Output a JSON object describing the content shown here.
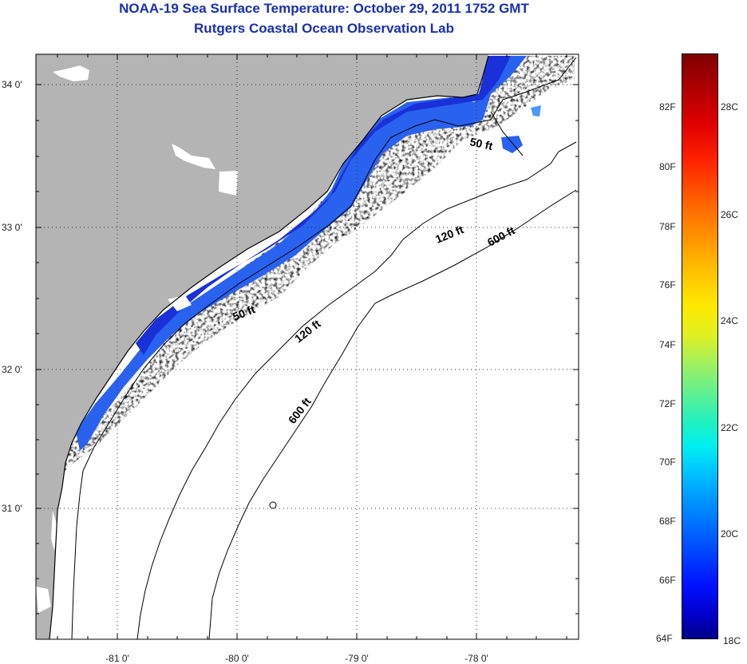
{
  "header": {
    "title_line1": "NOAA-19 Sea Surface Temperature:  October 29, 2011 1752 GMT",
    "title_line2": "Rutgers Coastal Ocean Observation Lab"
  },
  "map": {
    "lat_labels": [
      "34 0'",
      "33 0'",
      "32 0'",
      "31 0'"
    ],
    "lon_labels": [
      "-81 0'",
      "-80 0'",
      "-79 0'",
      "-78 0'"
    ],
    "contour_labels": {
      "c50_north": "50 ft",
      "c50_south": "50 ft",
      "c120_north": "120 ft",
      "c120_south": "120 ft",
      "c600_north": "600 ft",
      "c600_south": "600 ft"
    },
    "colors": {
      "land": "#b4b4b4",
      "ocean_nodata": "#ffffff",
      "sst_dark": "#1a30d8",
      "sst_mid": "#2a62f0",
      "sst_light": "#4a98f8",
      "title": "#1a2fb0"
    }
  },
  "colorbar": {
    "fahrenheit_labels": [
      "82F",
      "80F",
      "78F",
      "76F",
      "74F",
      "72F",
      "70F",
      "68F",
      "66F",
      "64F"
    ],
    "celsius_labels": [
      "28C",
      "26C",
      "24C",
      "22C",
      "20C",
      "18C"
    ]
  }
}
